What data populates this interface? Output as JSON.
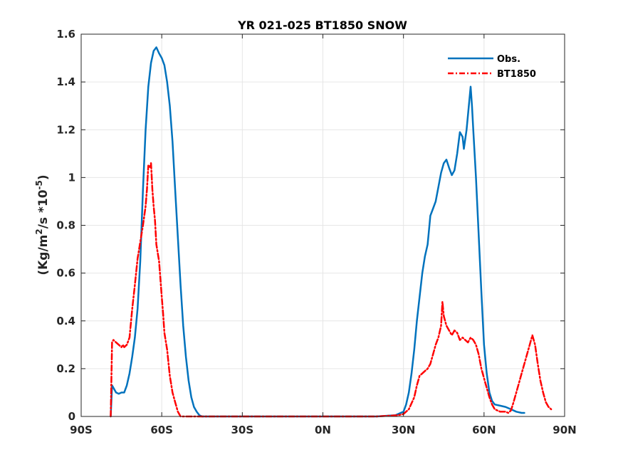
{
  "chart_data": {
    "type": "line",
    "title": "YR 021-025 BT1850 SNOW",
    "xlabel": "",
    "ylabel": {
      "prefix": "(Kg/m",
      "sup1": "2",
      "mid": "/s *10",
      "sup2": "-5",
      "suffix": ")"
    },
    "xlim": [
      -90,
      90
    ],
    "ylim": [
      0,
      1.6
    ],
    "x_ticks": [
      -90,
      -60,
      -30,
      0,
      30,
      60,
      90
    ],
    "x_tick_labels": [
      "90S",
      "60S",
      "30S",
      "0N",
      "30N",
      "60N",
      "90N"
    ],
    "y_ticks": [
      0,
      0.2,
      0.4,
      0.6,
      0.8,
      1,
      1.2,
      1.4,
      1.6
    ],
    "y_tick_labels": [
      "0",
      "0.2",
      "0.4",
      "0.6",
      "0.8",
      "1",
      "1.2",
      "1.4",
      "1.6"
    ],
    "grid": true,
    "legend_position": "top-right",
    "series": [
      {
        "name": "Obs.",
        "color": "#0072BD",
        "style": "solid",
        "points": [
          [
            -79,
            0.0
          ],
          [
            -78.5,
            0.13
          ],
          [
            -78,
            0.12
          ],
          [
            -77,
            0.1
          ],
          [
            -76,
            0.095
          ],
          [
            -75,
            0.1
          ],
          [
            -74,
            0.1
          ],
          [
            -73,
            0.13
          ],
          [
            -72,
            0.18
          ],
          [
            -71,
            0.25
          ],
          [
            -70,
            0.33
          ],
          [
            -69,
            0.45
          ],
          [
            -68,
            0.65
          ],
          [
            -67,
            0.95
          ],
          [
            -66,
            1.2
          ],
          [
            -65,
            1.38
          ],
          [
            -64,
            1.48
          ],
          [
            -63,
            1.53
          ],
          [
            -62,
            1.545
          ],
          [
            -61,
            1.52
          ],
          [
            -60,
            1.5
          ],
          [
            -59,
            1.47
          ],
          [
            -58,
            1.4
          ],
          [
            -57,
            1.3
          ],
          [
            -56,
            1.15
          ],
          [
            -55,
            0.95
          ],
          [
            -54,
            0.75
          ],
          [
            -53,
            0.55
          ],
          [
            -52,
            0.38
          ],
          [
            -51,
            0.25
          ],
          [
            -50,
            0.15
          ],
          [
            -49,
            0.08
          ],
          [
            -48,
            0.04
          ],
          [
            -47,
            0.02
          ],
          [
            -46,
            0.005
          ],
          [
            -45,
            0.0
          ],
          [
            -40,
            0.0
          ],
          [
            -30,
            0.0
          ],
          [
            -20,
            0.0
          ],
          [
            -10,
            0.0
          ],
          [
            0,
            0.0
          ],
          [
            10,
            0.0
          ],
          [
            20,
            0.0
          ],
          [
            27,
            0.005
          ],
          [
            30,
            0.02
          ],
          [
            31,
            0.05
          ],
          [
            32,
            0.1
          ],
          [
            33,
            0.18
          ],
          [
            34,
            0.28
          ],
          [
            35,
            0.4
          ],
          [
            36,
            0.5
          ],
          [
            37,
            0.6
          ],
          [
            38,
            0.67
          ],
          [
            39,
            0.72
          ],
          [
            40,
            0.84
          ],
          [
            41,
            0.87
          ],
          [
            42,
            0.9
          ],
          [
            43,
            0.96
          ],
          [
            44,
            1.02
          ],
          [
            45,
            1.06
          ],
          [
            46,
            1.075
          ],
          [
            47,
            1.04
          ],
          [
            48,
            1.01
          ],
          [
            49,
            1.03
          ],
          [
            50,
            1.1
          ],
          [
            51,
            1.19
          ],
          [
            52,
            1.17
          ],
          [
            52.5,
            1.12
          ],
          [
            53.5,
            1.2
          ],
          [
            54.5,
            1.32
          ],
          [
            55,
            1.38
          ],
          [
            55.5,
            1.3
          ],
          [
            56,
            1.2
          ],
          [
            57,
            1.0
          ],
          [
            58,
            0.76
          ],
          [
            59,
            0.52
          ],
          [
            60,
            0.3
          ],
          [
            61,
            0.18
          ],
          [
            62,
            0.1
          ],
          [
            63,
            0.065
          ],
          [
            64,
            0.05
          ],
          [
            66,
            0.045
          ],
          [
            68,
            0.04
          ],
          [
            70,
            0.03
          ],
          [
            72,
            0.02
          ],
          [
            74,
            0.015
          ],
          [
            75,
            0.015
          ]
        ]
      },
      {
        "name": "BT1850",
        "color": "#FF0000",
        "style": "dash-dot",
        "points": [
          [
            -79,
            0.0
          ],
          [
            -78.5,
            0.31
          ],
          [
            -78,
            0.32
          ],
          [
            -77,
            0.31
          ],
          [
            -76,
            0.3
          ],
          [
            -75,
            0.29
          ],
          [
            -74.5,
            0.3
          ],
          [
            -74,
            0.29
          ],
          [
            -73,
            0.3
          ],
          [
            -72,
            0.33
          ],
          [
            -71,
            0.45
          ],
          [
            -70,
            0.55
          ],
          [
            -69,
            0.66
          ],
          [
            -68,
            0.73
          ],
          [
            -67,
            0.8
          ],
          [
            -66,
            0.88
          ],
          [
            -65.5,
            0.95
          ],
          [
            -65,
            1.05
          ],
          [
            -64.5,
            1.04
          ],
          [
            -64,
            1.06
          ],
          [
            -63.5,
            0.95
          ],
          [
            -63,
            0.88
          ],
          [
            -62.5,
            0.82
          ],
          [
            -62,
            0.72
          ],
          [
            -61,
            0.65
          ],
          [
            -60,
            0.5
          ],
          [
            -59.5,
            0.43
          ],
          [
            -59,
            0.35
          ],
          [
            -58,
            0.28
          ],
          [
            -57,
            0.17
          ],
          [
            -56,
            0.1
          ],
          [
            -55,
            0.06
          ],
          [
            -54,
            0.02
          ],
          [
            -53,
            0.0
          ],
          [
            -40,
            0.0
          ],
          [
            -30,
            0.0
          ],
          [
            -20,
            0.0
          ],
          [
            -10,
            0.0
          ],
          [
            0,
            0.0
          ],
          [
            10,
            0.0
          ],
          [
            20,
            0.0
          ],
          [
            28,
            0.005
          ],
          [
            30,
            0.01
          ],
          [
            32,
            0.03
          ],
          [
            34,
            0.08
          ],
          [
            35,
            0.13
          ],
          [
            36,
            0.17
          ],
          [
            37,
            0.18
          ],
          [
            38,
            0.19
          ],
          [
            39,
            0.2
          ],
          [
            40,
            0.22
          ],
          [
            41,
            0.26
          ],
          [
            42,
            0.3
          ],
          [
            43,
            0.33
          ],
          [
            44,
            0.38
          ],
          [
            44.5,
            0.48
          ],
          [
            45,
            0.42
          ],
          [
            46,
            0.38
          ],
          [
            47,
            0.36
          ],
          [
            48,
            0.34
          ],
          [
            49,
            0.36
          ],
          [
            50,
            0.35
          ],
          [
            51,
            0.32
          ],
          [
            52,
            0.33
          ],
          [
            53,
            0.32
          ],
          [
            54,
            0.31
          ],
          [
            55,
            0.33
          ],
          [
            56,
            0.32
          ],
          [
            57,
            0.3
          ],
          [
            58,
            0.26
          ],
          [
            59,
            0.2
          ],
          [
            60,
            0.16
          ],
          [
            61,
            0.12
          ],
          [
            62,
            0.08
          ],
          [
            63,
            0.05
          ],
          [
            64,
            0.03
          ],
          [
            65,
            0.025
          ],
          [
            66,
            0.02
          ],
          [
            67,
            0.02
          ],
          [
            68,
            0.02
          ],
          [
            69,
            0.015
          ],
          [
            70,
            0.025
          ],
          [
            71,
            0.06
          ],
          [
            72,
            0.1
          ],
          [
            73,
            0.14
          ],
          [
            74,
            0.18
          ],
          [
            75,
            0.22
          ],
          [
            76,
            0.26
          ],
          [
            77,
            0.3
          ],
          [
            78,
            0.34
          ],
          [
            79,
            0.3
          ],
          [
            80,
            0.22
          ],
          [
            81,
            0.15
          ],
          [
            82,
            0.1
          ],
          [
            83,
            0.06
          ],
          [
            84,
            0.04
          ],
          [
            85,
            0.03
          ]
        ]
      }
    ]
  }
}
